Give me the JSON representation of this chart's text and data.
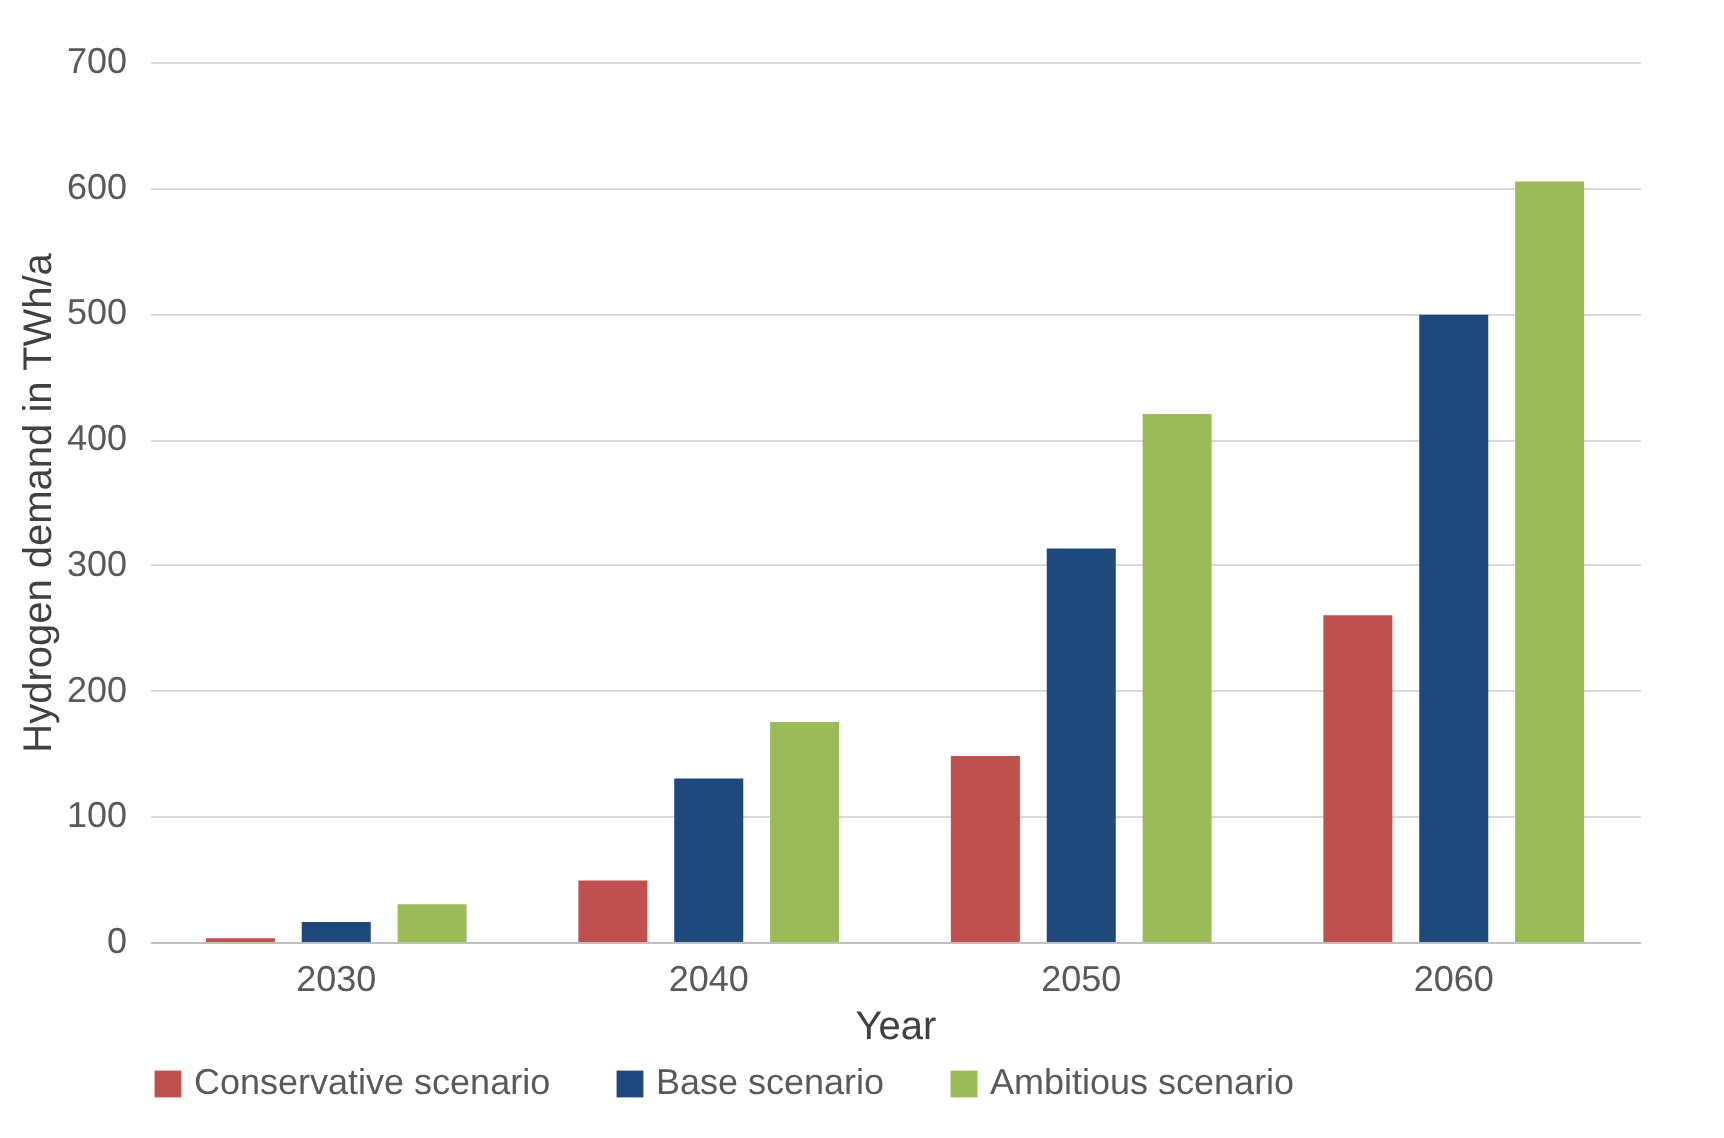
{
  "chart_data": {
    "type": "bar",
    "xlabel": "Year",
    "ylabel": "Hydrogen demand in TWh/a",
    "categories": [
      "2030",
      "2040",
      "2050",
      "2060"
    ],
    "series": [
      {
        "name": "Conservative scenario",
        "color": "#c0504d",
        "values": [
          3,
          49,
          148,
          260
        ]
      },
      {
        "name": "Base scenario",
        "color": "#1f497d",
        "values": [
          16,
          130,
          313,
          499
        ]
      },
      {
        "name": "Ambitious scenario",
        "color": "#9bbb59",
        "values": [
          30,
          175,
          420,
          605
        ]
      }
    ],
    "ylim": [
      0,
      700
    ],
    "yticks": [
      0,
      100,
      200,
      300,
      400,
      500,
      600,
      700
    ],
    "grid": "y",
    "legend": "bottom"
  }
}
